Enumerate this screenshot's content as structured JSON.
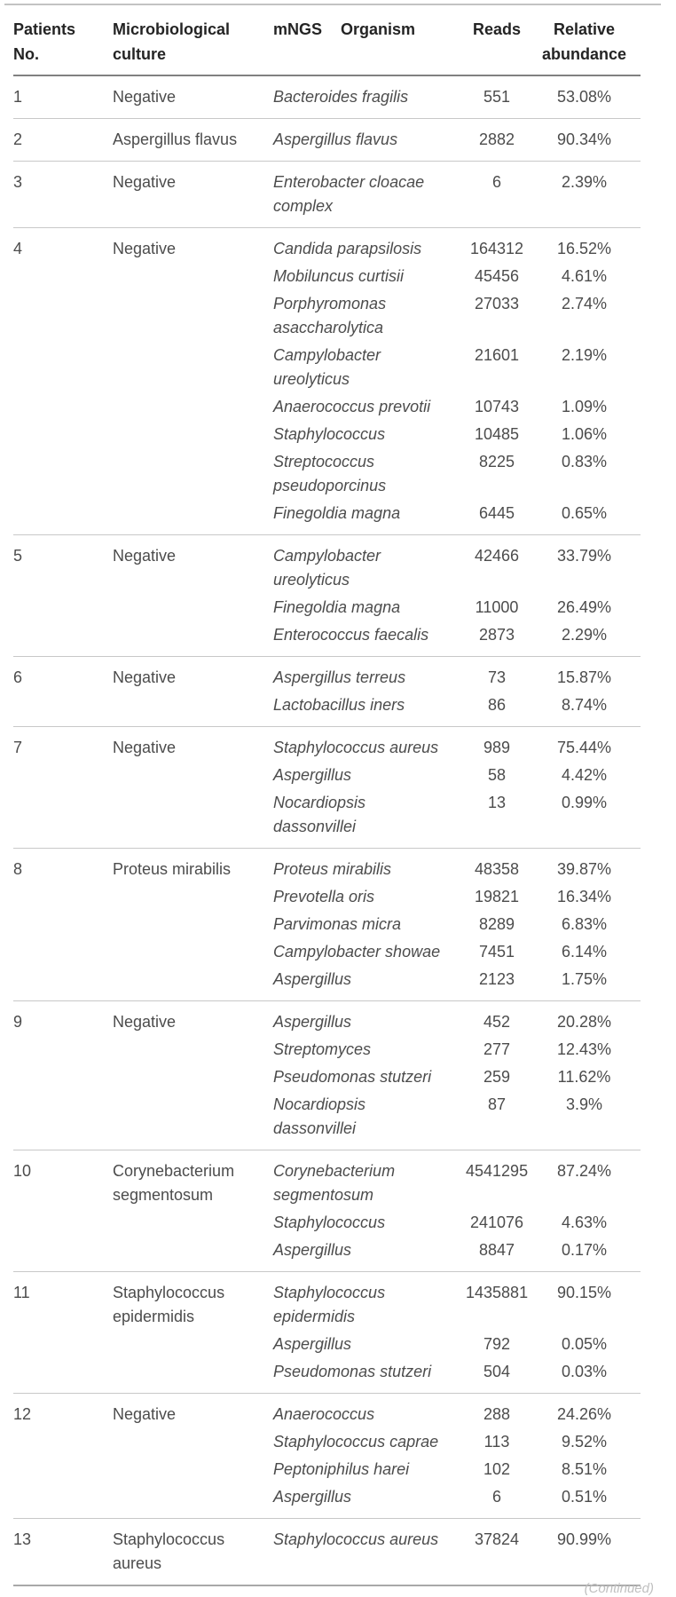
{
  "colors": {
    "background": "#ffffff",
    "header_text": "#242424",
    "body_text": "#4c4c4c",
    "rule_top": "#c3c3c3",
    "rule_header_bottom": "#808080",
    "rule_row_separator": "#c8c8c8",
    "rule_table_bottom": "#a8a8a8"
  },
  "table": {
    "headers": {
      "patients_no": "Patients No.",
      "culture": "Microbiological culture",
      "mngs_organism": "mNGS Organism",
      "reads": "Reads",
      "relative_abundance": "Relative abundance"
    },
    "patients": [
      {
        "no": "1",
        "culture": "Negative",
        "organisms": [
          {
            "name": "Bacteroides fragilis",
            "reads": "551",
            "abundance": "53.08%"
          }
        ]
      },
      {
        "no": "2",
        "culture": "Aspergillus flavus",
        "organisms": [
          {
            "name": "Aspergillus flavus",
            "reads": "2882",
            "abundance": "90.34%"
          }
        ]
      },
      {
        "no": "3",
        "culture": "Negative",
        "organisms": [
          {
            "name": "Enterobacter cloacae complex",
            "reads": "6",
            "abundance": "2.39%"
          }
        ]
      },
      {
        "no": "4",
        "culture": "Negative",
        "organisms": [
          {
            "name": "Candida parapsilosis",
            "reads": "164312",
            "abundance": "16.52%"
          },
          {
            "name": "Mobiluncus curtisii",
            "reads": "45456",
            "abundance": "4.61%"
          },
          {
            "name": "Porphyromonas asaccharolytica",
            "reads": "27033",
            "abundance": "2.74%"
          },
          {
            "name": "Campylobacter ureolyticus",
            "reads": "21601",
            "abundance": "2.19%"
          },
          {
            "name": "Anaerococcus prevotii",
            "reads": "10743",
            "abundance": "1.09%"
          },
          {
            "name": "Staphylococcus",
            "reads": "10485",
            "abundance": "1.06%"
          },
          {
            "name": "Streptococcus pseudoporcinus",
            "reads": "8225",
            "abundance": "0.83%"
          },
          {
            "name": "Finegoldia magna",
            "reads": "6445",
            "abundance": "0.65%"
          }
        ]
      },
      {
        "no": "5",
        "culture": "Negative",
        "organisms": [
          {
            "name": "Campylobacter ureolyticus",
            "reads": "42466",
            "abundance": "33.79%"
          },
          {
            "name": "Finegoldia magna",
            "reads": "11000",
            "abundance": "26.49%"
          },
          {
            "name": "Enterococcus faecalis",
            "reads": "2873",
            "abundance": "2.29%"
          }
        ]
      },
      {
        "no": "6",
        "culture": "Negative",
        "organisms": [
          {
            "name": "Aspergillus terreus",
            "reads": "73",
            "abundance": "15.87%"
          },
          {
            "name": "Lactobacillus iners",
            "reads": "86",
            "abundance": "8.74%"
          }
        ]
      },
      {
        "no": "7",
        "culture": "Negative",
        "organisms": [
          {
            "name": "Staphylococcus aureus",
            "reads": "989",
            "abundance": "75.44%"
          },
          {
            "name": "Aspergillus",
            "reads": "58",
            "abundance": "4.42%"
          },
          {
            "name": "Nocardiopsis dassonvillei",
            "reads": "13",
            "abundance": "0.99%"
          }
        ]
      },
      {
        "no": "8",
        "culture": "Proteus mirabilis",
        "organisms": [
          {
            "name": "Proteus mirabilis",
            "reads": "48358",
            "abundance": "39.87%"
          },
          {
            "name": "Prevotella oris",
            "reads": "19821",
            "abundance": "16.34%"
          },
          {
            "name": "Parvimonas micra",
            "reads": "8289",
            "abundance": "6.83%"
          },
          {
            "name": "Campylobacter showae",
            "reads": "7451",
            "abundance": "6.14%"
          },
          {
            "name": "Aspergillus",
            "reads": "2123",
            "abundance": "1.75%"
          }
        ]
      },
      {
        "no": "9",
        "culture": "Negative",
        "organisms": [
          {
            "name": "Aspergillus",
            "reads": "452",
            "abundance": "20.28%"
          },
          {
            "name": "Streptomyces",
            "reads": "277",
            "abundance": "12.43%"
          },
          {
            "name": "Pseudomonas stutzeri",
            "reads": "259",
            "abundance": "11.62%"
          },
          {
            "name": "Nocardiopsis dassonvillei",
            "reads": "87",
            "abundance": "3.9%"
          }
        ]
      },
      {
        "no": "10",
        "culture": "Corynebacterium segmentosum",
        "organisms": [
          {
            "name": "Corynebacterium segmentosum",
            "reads": "4541295",
            "abundance": "87.24%"
          },
          {
            "name": "Staphylococcus",
            "reads": "241076",
            "abundance": "4.63%"
          },
          {
            "name": "Aspergillus",
            "reads": "8847",
            "abundance": "0.17%"
          }
        ]
      },
      {
        "no": "11",
        "culture": "Staphylococcus epidermidis",
        "organisms": [
          {
            "name": "Staphylococcus epidermidis",
            "reads": "1435881",
            "abundance": "90.15%"
          },
          {
            "name": "Aspergillus",
            "reads": "792",
            "abundance": "0.05%"
          },
          {
            "name": "Pseudomonas stutzeri",
            "reads": "504",
            "abundance": "0.03%"
          }
        ]
      },
      {
        "no": "12",
        "culture": "Negative",
        "organisms": [
          {
            "name": "Anaerococcus",
            "reads": "288",
            "abundance": "24.26%"
          },
          {
            "name": "Staphylococcus caprae",
            "reads": "113",
            "abundance": "9.52%"
          },
          {
            "name": "Peptoniphilus harei",
            "reads": "102",
            "abundance": "8.51%"
          },
          {
            "name": "Aspergillus",
            "reads": "6",
            "abundance": "0.51%"
          }
        ]
      },
      {
        "no": "13",
        "culture": "Staphylococcus aureus",
        "organisms": [
          {
            "name": "Staphylococcus aureus",
            "reads": "37824",
            "abundance": "90.99%"
          }
        ]
      }
    ]
  },
  "footer": {
    "continued_label": "(Continued)"
  }
}
